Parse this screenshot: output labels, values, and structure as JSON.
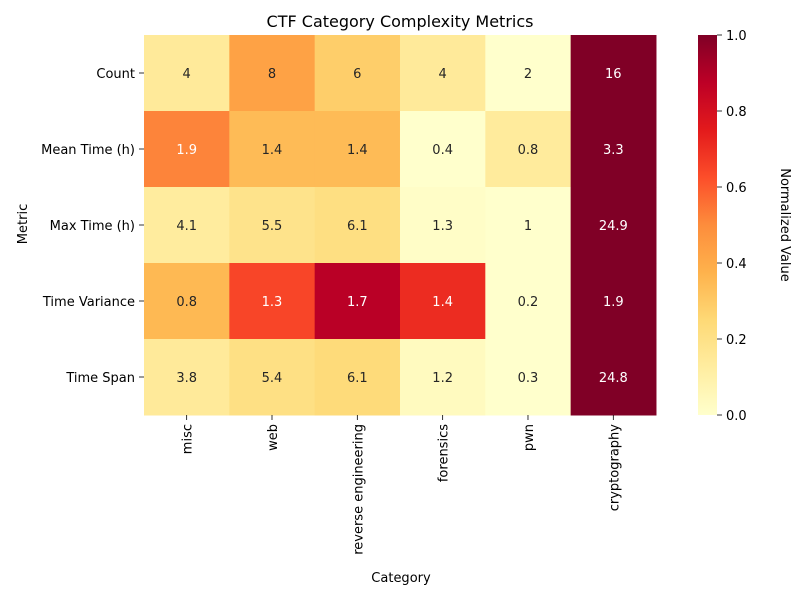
{
  "chart_data": {
    "type": "heatmap",
    "title": "CTF Category Complexity Metrics",
    "xlabel": "Category",
    "ylabel": "Metric",
    "colorbar_label": "Normalized Value",
    "colormap": "YlOrRd",
    "colorbar_range": [
      0,
      1
    ],
    "colorbar_ticks": [
      "0.0",
      "0.2",
      "0.4",
      "0.6",
      "0.8",
      "1.0"
    ],
    "columns": [
      "misc",
      "web",
      "reverse engineering",
      "forensics",
      "pwn",
      "cryptography"
    ],
    "rows": [
      "Count",
      "Mean Time (h)",
      "Max Time (h)",
      "Time Variance",
      "Time Span"
    ],
    "values": [
      [
        4,
        8,
        6,
        4,
        2,
        16
      ],
      [
        1.9,
        1.4,
        1.4,
        0.4,
        0.8,
        3.3
      ],
      [
        4.1,
        5.5,
        6.1,
        1.3,
        1,
        24.9
      ],
      [
        0.8,
        1.3,
        1.7,
        1.4,
        0.2,
        1.9
      ],
      [
        3.8,
        5.4,
        6.1,
        1.2,
        0.3,
        24.8
      ]
    ],
    "normalized": [
      [
        0.143,
        0.429,
        0.286,
        0.143,
        0.0,
        1.0
      ],
      [
        0.517,
        0.345,
        0.345,
        0.0,
        0.138,
        1.0
      ],
      [
        0.13,
        0.188,
        0.213,
        0.013,
        0.0,
        1.0
      ],
      [
        0.353,
        0.647,
        0.882,
        0.706,
        0.0,
        1.0
      ],
      [
        0.143,
        0.208,
        0.237,
        0.037,
        0.0,
        1.0
      ]
    ]
  }
}
